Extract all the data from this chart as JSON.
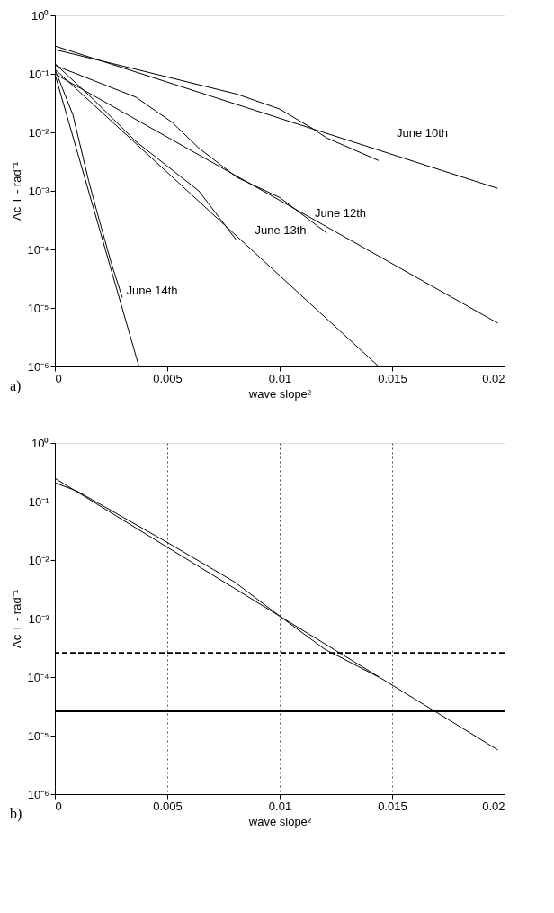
{
  "chart_data": [
    {
      "type": "line",
      "xlabel": "wave slope²",
      "ylabel": "Λc T - rad⁻¹",
      "log": "y",
      "grid": false,
      "line_style": "solid",
      "xlim": [
        0,
        0.02
      ],
      "ylim": [
        1e-06,
        1
      ],
      "xticks": [
        0,
        0.005,
        0.01,
        0.015,
        0.02
      ],
      "yticks": [
        {
          "value": 1e-06,
          "label": "10⁻⁶"
        },
        {
          "value": 1e-05,
          "label": "10⁻⁵"
        },
        {
          "value": 0.0001,
          "label": "10⁻⁴"
        },
        {
          "value": 0.001,
          "label": "10⁻³"
        },
        {
          "value": 0.01,
          "label": "10⁻²"
        },
        {
          "value": 0.1,
          "label": "10⁻¹"
        },
        {
          "value": 1,
          "label": "10⁰"
        }
      ],
      "series": [
        {
          "color": "#000000",
          "x": [
            0,
            0.0197
          ],
          "values": [
            0.3,
            0.0011
          ]
        },
        {
          "color": "#000000",
          "x": [
            0,
            0.0036,
            0.0081,
            0.01,
            0.0114,
            0.0121,
            0.0144
          ],
          "values": [
            0.26,
            0.12,
            0.045,
            0.025,
            0.012,
            0.008,
            0.0033
          ]
        },
        {
          "color": "#000000",
          "x": [
            0,
            0.0197
          ],
          "values": [
            0.1,
            5.5e-06
          ]
        },
        {
          "color": "#000000",
          "x": [
            0,
            0.0036,
            0.0052,
            0.0064,
            0.0081,
            0.01,
            0.0121
          ],
          "values": [
            0.14,
            0.04,
            0.015,
            0.0054,
            0.0017,
            0.00077,
            0.00019
          ]
        },
        {
          "color": "#000000",
          "x": [
            0,
            0.0144
          ],
          "values": [
            0.12,
            1e-06
          ]
        },
        {
          "color": "#000000",
          "x": [
            0,
            0.0017,
            0.0036,
            0.0064,
            0.0081
          ],
          "values": [
            0.15,
            0.037,
            0.007,
            0.001,
            0.00014
          ]
        },
        {
          "color": "#000000",
          "x": [
            0,
            0.00374
          ],
          "values": [
            0.1,
            1e-06
          ]
        },
        {
          "color": "#000000",
          "x": [
            0,
            0.0008,
            0.0015,
            0.0019,
            0.0025,
            0.003
          ],
          "values": [
            0.12,
            0.02,
            0.0015,
            0.0004,
            6e-05,
            1.5e-05
          ]
        }
      ],
      "annotations": [
        "June 10th",
        "June 12th",
        "June 13th",
        "June 14th",
        "a)"
      ]
    },
    {
      "type": "line",
      "xlabel": "wave slope²",
      "ylabel": "Λc T - rad⁻¹",
      "log": "y",
      "grid": "x",
      "line_style": "solid",
      "xlim": [
        0,
        0.02
      ],
      "ylim": [
        1e-06,
        1
      ],
      "xticks": [
        0,
        0.005,
        0.01,
        0.015,
        0.02
      ],
      "yticks": [
        {
          "value": 1e-06,
          "label": "10⁻⁶"
        },
        {
          "value": 1e-05,
          "label": "10⁻⁵"
        },
        {
          "value": 0.0001,
          "label": "10⁻⁴"
        },
        {
          "value": 0.001,
          "label": "10⁻³"
        },
        {
          "value": 0.01,
          "label": "10⁻²"
        },
        {
          "value": 0.1,
          "label": "10⁻¹"
        },
        {
          "value": 1,
          "label": "10⁰"
        }
      ],
      "series": [
        {
          "color": "#000000",
          "x": [
            0,
            0.0197
          ],
          "values": [
            0.25,
            5.7e-06
          ]
        },
        {
          "color": "#000000",
          "x": [
            0,
            0.001,
            0.005,
            0.008,
            0.01,
            0.012,
            0.0144
          ],
          "values": [
            0.21,
            0.15,
            0.02,
            0.0042,
            0.0011,
            0.0003,
            0.0001
          ]
        }
      ],
      "ref_lines": [
        {
          "axis": "y",
          "value": 0.00026,
          "color": "#000000",
          "line_style": "dashed"
        },
        {
          "axis": "y",
          "value": 2.6e-05,
          "color": "#000000",
          "line_style": "solid"
        }
      ],
      "annotations": [
        "b)"
      ]
    }
  ]
}
